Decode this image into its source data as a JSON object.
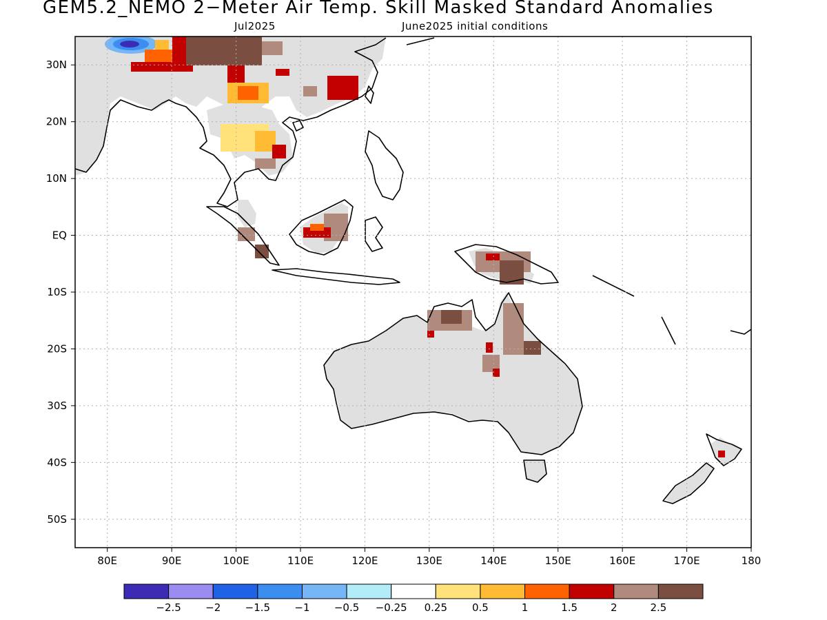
{
  "title": "GEM5.2_NEMO 2−Meter Air Temp. Skill Masked Standard Anomalies",
  "subtitle_month": "Jul2025",
  "subtitle_init": "June2025 initial conditions",
  "lat_labels": [
    "30N",
    "20N",
    "10N",
    "EQ",
    "10S",
    "20S",
    "30S",
    "40S",
    "50S"
  ],
  "lon_labels": [
    "80E",
    "90E",
    "100E",
    "110E",
    "120E",
    "130E",
    "140E",
    "150E",
    "160E",
    "170E",
    "180"
  ],
  "lat_values": [
    30,
    20,
    10,
    0,
    -10,
    -20,
    -30,
    -40,
    -50
  ],
  "lon_values": [
    80,
    90,
    100,
    110,
    120,
    130,
    140,
    150,
    160,
    170,
    180
  ],
  "colorbar": {
    "colors": [
      "#3c2bb5",
      "#9b8cf2",
      "#1f62e6",
      "#3b8ef0",
      "#76b6f6",
      "#b1ecf8",
      "#ffffff",
      "#ffe37a",
      "#ffbb33",
      "#ff6200",
      "#c30000",
      "#b08a7c",
      "#7a4f42"
    ],
    "labels": [
      "−2.5",
      "−2",
      "−1.5",
      "−1",
      "−0.5",
      "−0.25",
      "0.25",
      "0.5",
      "1",
      "1.5",
      "2",
      "2.5"
    ]
  },
  "colors": {
    "masked_land": "#e0e0e0",
    "coast": "#000000",
    "grid": "#b0b0b0"
  }
}
